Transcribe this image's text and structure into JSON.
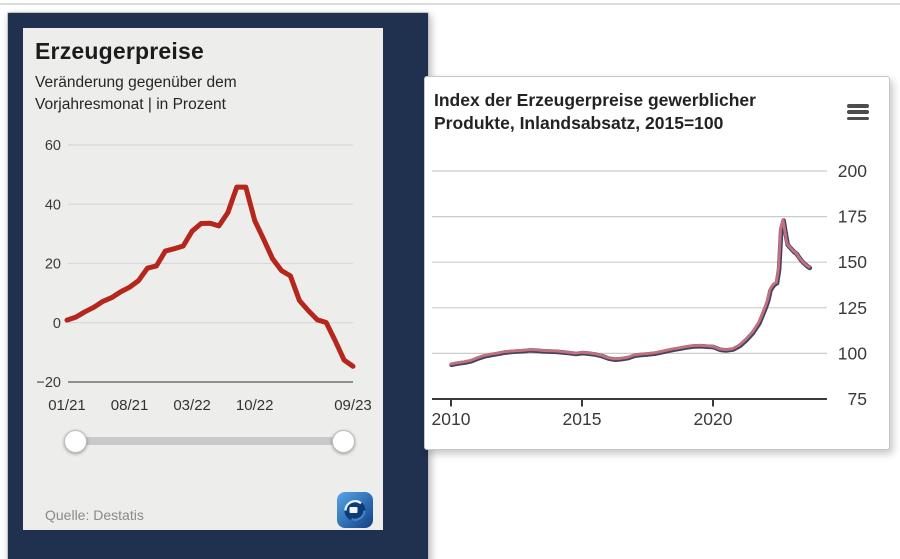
{
  "left_card": {
    "title": "Erzeugerpreise",
    "subtitle_line1": "Veränderung gegenüber dem",
    "subtitle_line2": "Vorjahresmonat | in Prozent",
    "source": "Quelle: Destatis",
    "logo": "tagesschau-app-icon",
    "frame_color": "#20304f",
    "panel_color": "#edeeec",
    "line_color": "#b5271d"
  },
  "right_card": {
    "title_line1": "Index der Erzeugerpreise gewerblicher",
    "title_line2": "Produkte, Inlandsabsatz, 2015=100",
    "menu_icon": "hamburger-menu-icon",
    "line_color": "#c4717f",
    "line_outline_color": "#43435f"
  },
  "chart_data": [
    {
      "type": "line",
      "title": "Erzeugerpreise",
      "subtitle": "Veränderung gegenüber dem Vorjahresmonat | in Prozent",
      "source": "Quelle: Destatis",
      "grid": "horizontal",
      "ylim": [
        -20,
        60
      ],
      "y_tick_values": [
        60,
        40,
        20,
        0,
        -20
      ],
      "y_tick_labels": [
        "60",
        "40",
        "20",
        "0",
        "−20"
      ],
      "x_tick_labels": [
        "01/21",
        "08/21",
        "03/22",
        "10/22",
        "09/23"
      ],
      "x_tick_month_positions": [
        0,
        7,
        14,
        21,
        32
      ],
      "x_months": "monatlich 01/2021 bis 09/2023",
      "series": [
        {
          "name": "Erzeugerpreise, Veränderung gegenüber dem Vorjahresmonat in Prozent",
          "color": "#b5271d",
          "values": [
            0.9,
            1.9,
            3.7,
            5.2,
            7.2,
            8.5,
            10.4,
            12.0,
            14.2,
            18.4,
            19.2,
            24.2,
            25.0,
            25.9,
            30.9,
            33.5,
            33.6,
            32.7,
            37.2,
            45.8,
            45.8,
            34.5,
            28.2,
            21.6,
            17.6,
            15.8,
            7.5,
            4.1,
            1.0,
            0.1,
            -6.0,
            -12.6,
            -14.7
          ]
        }
      ]
    },
    {
      "type": "line",
      "title": "Index der Erzeugerpreise gewerblicher Produkte, Inlandsabsatz, 2015=100",
      "grid": "horizontal",
      "xlim": [
        2010,
        2023.75
      ],
      "ylim": [
        75,
        200
      ],
      "y_tick_values": [
        200,
        175,
        150,
        125,
        100,
        75
      ],
      "y_tick_labels": [
        "200",
        "175",
        "150",
        "125",
        "100",
        "75"
      ],
      "x_tick_values": [
        2010,
        2015,
        2020
      ],
      "x_tick_labels": [
        "2010",
        "2015",
        "2020"
      ],
      "legend": "none",
      "series": [
        {
          "name": "Index der Erzeugerpreise gewerblicher Produkte, Inlandsabsatz, 2015=100",
          "color": "#c4717f",
          "outline_color": "#43435f",
          "x": [
            2010.0,
            2010.25,
            2010.5,
            2010.75,
            2011.0,
            2011.25,
            2011.5,
            2011.75,
            2012.0,
            2012.25,
            2012.5,
            2012.75,
            2013.0,
            2013.25,
            2013.5,
            2013.75,
            2014.0,
            2014.25,
            2014.5,
            2014.75,
            2015.0,
            2015.25,
            2015.5,
            2015.75,
            2016.0,
            2016.25,
            2016.5,
            2016.75,
            2017.0,
            2017.25,
            2017.5,
            2017.75,
            2018.0,
            2018.25,
            2018.5,
            2018.75,
            2019.0,
            2019.25,
            2019.5,
            2019.75,
            2020.0,
            2020.25,
            2020.5,
            2020.75,
            2021.0,
            2021.25,
            2021.5,
            2021.75,
            2022.0,
            2022.08,
            2022.17,
            2022.25,
            2022.33,
            2022.42,
            2022.5,
            2022.58,
            2022.67,
            2022.75,
            2022.83,
            2022.92,
            2023.0,
            2023.08,
            2023.17,
            2023.25,
            2023.33,
            2023.42,
            2023.5,
            2023.58,
            2023.67
          ],
          "values": [
            94.2,
            94.9,
            95.4,
            96.1,
            97.6,
            98.8,
            99.5,
            100.1,
            100.8,
            101.2,
            101.5,
            101.7,
            102.1,
            101.9,
            101.6,
            101.4,
            101.3,
            101.0,
            100.6,
            100.1,
            100.6,
            100.3,
            99.8,
            98.9,
            97.6,
            97.0,
            97.3,
            97.9,
            99.2,
            99.6,
            99.9,
            100.3,
            101.0,
            101.8,
            102.5,
            103.1,
            103.8,
            104.3,
            104.4,
            104.1,
            103.9,
            102.4,
            102.1,
            102.6,
            104.5,
            107.8,
            111.6,
            117.0,
            125.9,
            129.2,
            134.9,
            136.8,
            138.2,
            139.0,
            146.5,
            168.0,
            173.3,
            166.2,
            160.0,
            158.4,
            157.2,
            156.0,
            155.0,
            153.4,
            151.8,
            150.3,
            149.2,
            148.2,
            147.3
          ]
        }
      ]
    }
  ]
}
